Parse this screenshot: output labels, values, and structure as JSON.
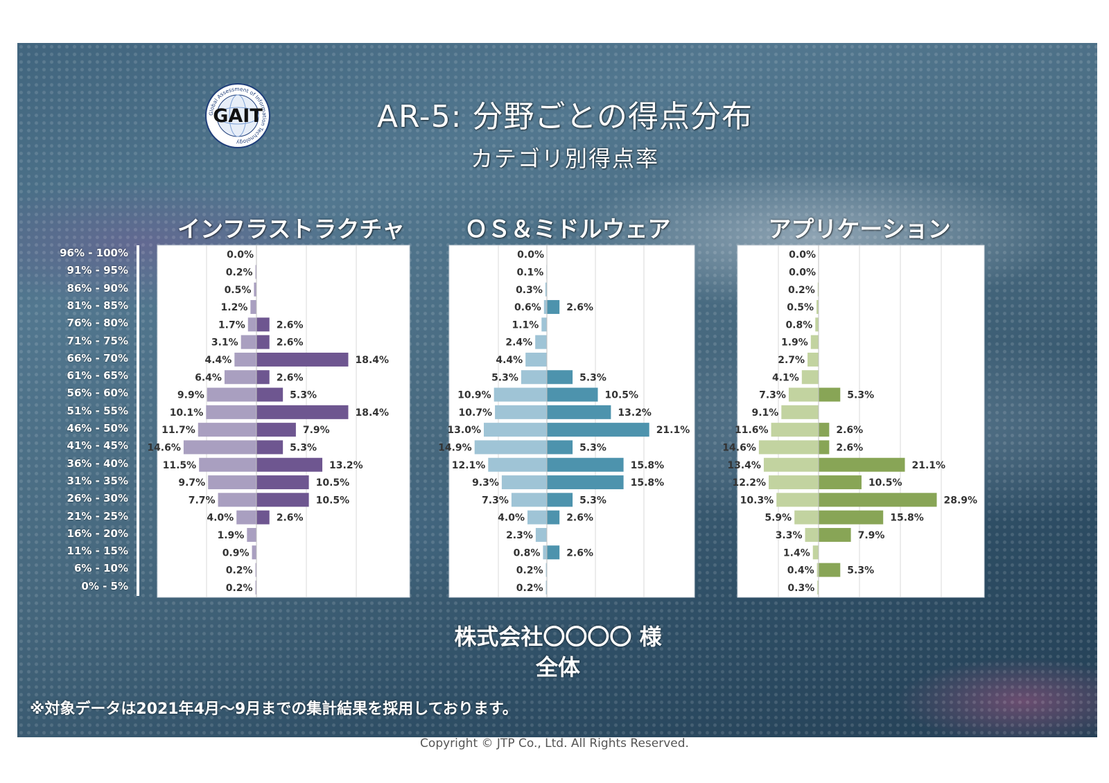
{
  "header": {
    "title": "AR-5: 分野ごとの得点分布",
    "subtitle": "カテゴリ別得点率",
    "logo_text": "GAIT",
    "logo_ring_text": "Global Assessment of Information Technology"
  },
  "chart_data": {
    "type": "bar",
    "orientation": "horizontal",
    "categories": [
      "96% - 100%",
      "91% - 95%",
      "86% - 90%",
      "81% - 85%",
      "76% - 80%",
      "71% - 75%",
      "66% - 70%",
      "61% - 65%",
      "56% - 60%",
      "51% - 55%",
      "46% - 50%",
      "41% - 45%",
      "36% - 40%",
      "31% - 35%",
      "26% - 30%",
      "21% - 25%",
      "16% - 20%",
      "11% - 15%",
      "6% - 10%",
      "0% - 5%"
    ],
    "panels": [
      {
        "title": "インフラストラクチャ",
        "left_color": "#a99fc0",
        "right_color": "#6e5690",
        "left_values": [
          0.0,
          0.2,
          0.5,
          1.2,
          1.7,
          3.1,
          4.4,
          6.4,
          9.9,
          10.1,
          11.7,
          14.6,
          11.5,
          9.7,
          7.7,
          4.0,
          1.9,
          0.9,
          0.2,
          0.2
        ],
        "right_values": [
          null,
          null,
          null,
          null,
          2.6,
          2.6,
          18.4,
          2.6,
          5.3,
          18.4,
          7.9,
          5.3,
          13.2,
          10.5,
          10.5,
          2.6,
          null,
          null,
          null,
          null
        ]
      },
      {
        "title": "ＯＳ＆ミドルウェア",
        "left_color": "#9fc4d6",
        "right_color": "#4d93ad",
        "left_values": [
          0.0,
          0.1,
          0.3,
          0.6,
          1.1,
          2.4,
          4.4,
          5.3,
          10.9,
          10.7,
          13.0,
          14.9,
          12.1,
          9.3,
          7.3,
          4.0,
          2.3,
          0.8,
          0.2,
          0.2
        ],
        "right_values": [
          null,
          null,
          null,
          2.6,
          null,
          null,
          null,
          5.3,
          10.5,
          13.2,
          21.1,
          5.3,
          15.8,
          15.8,
          5.3,
          2.6,
          null,
          2.6,
          null,
          null
        ]
      },
      {
        "title": "アプリケーション",
        "left_color": "#c2d3a0",
        "right_color": "#88a556",
        "left_values": [
          0.0,
          0.0,
          0.2,
          0.5,
          0.8,
          1.9,
          2.7,
          4.1,
          7.3,
          9.1,
          11.6,
          14.6,
          13.4,
          12.2,
          10.3,
          5.9,
          3.3,
          1.4,
          0.4,
          0.3
        ],
        "right_values": [
          null,
          null,
          null,
          null,
          null,
          null,
          null,
          null,
          5.3,
          null,
          2.6,
          2.6,
          21.1,
          10.5,
          28.9,
          15.8,
          7.9,
          null,
          5.3,
          null
        ]
      }
    ]
  },
  "company": "株式会社〇〇〇〇 様",
  "scope": "全体",
  "footnote": "※対象データは2021年4月～9月までの集計結果を採用しております。",
  "copyright": "Copyright © JTP Co., Ltd. All Rights Reserved."
}
